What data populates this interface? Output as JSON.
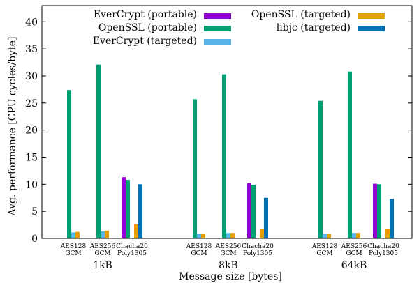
{
  "chart_data": {
    "type": "bar",
    "xlabel": "Message size [bytes]",
    "ylabel": "Avg. performance [CPU cycles/byte]",
    "ylim": [
      0,
      43
    ],
    "yticks": [
      0,
      5,
      10,
      15,
      20,
      25,
      30,
      35,
      40
    ],
    "grid": false,
    "legend_placement": "top",
    "groups": [
      {
        "label": "1kB",
        "categories": [
          {
            "line1": "AES128",
            "line2": "GCM"
          },
          {
            "line1": "AES256",
            "line2": "GCM"
          },
          {
            "line1": "Chacha20",
            "line2": "Poly1305"
          }
        ]
      },
      {
        "label": "8kB",
        "categories": [
          {
            "line1": "AES128",
            "line2": "GCM"
          },
          {
            "line1": "AES256",
            "line2": "GCM"
          },
          {
            "line1": "Chacha20",
            "line2": "Poly1305"
          }
        ]
      },
      {
        "label": "64kB",
        "categories": [
          {
            "line1": "AES128",
            "line2": "GCM"
          },
          {
            "line1": "AES256",
            "line2": "GCM"
          },
          {
            "line1": "Chacha20",
            "line2": "Poly1305"
          }
        ]
      }
    ],
    "series": [
      {
        "name": "EverCrypt (portable)",
        "color": "#9400d3",
        "values": [
          null,
          null,
          11.3,
          null,
          null,
          10.2,
          null,
          null,
          10.1
        ]
      },
      {
        "name": "OpenSSL (portable)",
        "color": "#009e73",
        "values": [
          27.4,
          32.1,
          10.8,
          25.7,
          30.3,
          9.9,
          25.4,
          30.8,
          10.0
        ]
      },
      {
        "name": "EverCrypt (targeted)",
        "color": "#56b4e9",
        "values": [
          1.1,
          1.3,
          null,
          0.8,
          1.0,
          null,
          0.8,
          1.0,
          null
        ]
      },
      {
        "name": "OpenSSL (targeted)",
        "color": "#e69f00",
        "values": [
          1.2,
          1.4,
          2.6,
          0.8,
          1.0,
          1.8,
          0.8,
          1.0,
          1.8
        ]
      },
      {
        "name": "libjc (targeted)",
        "color": "#0072b2",
        "values": [
          null,
          null,
          10.0,
          null,
          null,
          7.5,
          null,
          null,
          7.3
        ]
      }
    ]
  }
}
